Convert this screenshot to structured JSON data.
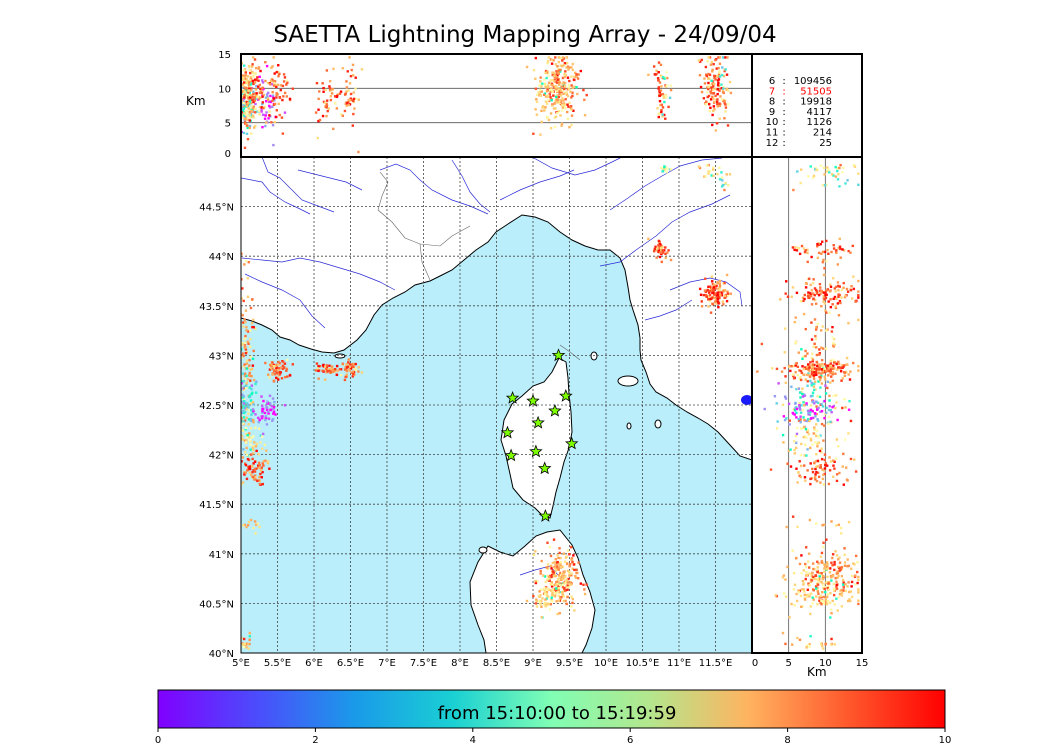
{
  "title": "SAETTA Lightning Mapping Array - 24/09/04",
  "map": {
    "lon_range": [
      5.0,
      12.0
    ],
    "lat_range": [
      40.0,
      45.0
    ],
    "lon_ticks": [
      "5°E",
      "5.5°E",
      "6°E",
      "6.5°E",
      "7°E",
      "7.5°E",
      "8°E",
      "8.5°E",
      "9°E",
      "9.5°E",
      "10°E",
      "10.5°E",
      "11°E",
      "11.5°E"
    ],
    "lat_ticks": [
      "40°N",
      "40.5°N",
      "41°N",
      "41.5°N",
      "42°N",
      "42.5°N",
      "43°N",
      "43.5°N",
      "44°N",
      "44.5°N"
    ],
    "sea_color": "#b9eefa",
    "land_color": "#ffffff",
    "river_color": "#2b2bd8",
    "grid": "dotted",
    "stations": [
      {
        "lon": 9.35,
        "lat": 43.0
      },
      {
        "lon": 8.72,
        "lat": 42.57
      },
      {
        "lon": 9.0,
        "lat": 42.54
      },
      {
        "lon": 9.45,
        "lat": 42.59
      },
      {
        "lon": 9.3,
        "lat": 42.44
      },
      {
        "lon": 9.07,
        "lat": 42.32
      },
      {
        "lon": 8.65,
        "lat": 42.22
      },
      {
        "lon": 9.53,
        "lat": 42.11
      },
      {
        "lon": 8.7,
        "lat": 41.99
      },
      {
        "lon": 9.04,
        "lat": 42.03
      },
      {
        "lon": 9.16,
        "lat": 41.86
      },
      {
        "lon": 9.17,
        "lat": 41.38
      }
    ],
    "station_color": "#7dff00"
  },
  "top_panel": {
    "y_label": "Km",
    "y_ticks": [
      "0",
      "5",
      "10",
      "15"
    ],
    "y_range": [
      0,
      15
    ]
  },
  "right_panel": {
    "x_label": "Km",
    "x_ticks": [
      "0",
      "5",
      "10",
      "15"
    ],
    "x_range": [
      0,
      15
    ]
  },
  "stats": [
    {
      "label": "6",
      "count": "109456",
      "color": "#000000"
    },
    {
      "label": "7",
      "count": "51505",
      "color": "#ff0000"
    },
    {
      "label": "8",
      "count": "19918",
      "color": "#000000"
    },
    {
      "label": "9",
      "count": "4117",
      "color": "#000000"
    },
    {
      "label": "10",
      "count": "1126",
      "color": "#000000"
    },
    {
      "label": "11",
      "count": "214",
      "color": "#000000"
    },
    {
      "label": "12",
      "count": "25",
      "color": "#000000"
    }
  ],
  "colorbar": {
    "caption": "from 15:10:00 to 15:19:59",
    "ticks": [
      "0",
      "2",
      "4",
      "6",
      "8",
      "10"
    ],
    "range": [
      0,
      10
    ],
    "colormap": "rainbow"
  },
  "clusters": [
    {
      "lon": 5.05,
      "lat": 42.9,
      "h": 9,
      "n": 160,
      "sx": 0.07,
      "sy": 0.45,
      "t": 7.5
    },
    {
      "lon": 5.05,
      "lat": 42.5,
      "h": 8,
      "n": 70,
      "sx": 0.1,
      "sy": 0.15,
      "t": 3.2
    },
    {
      "lon": 5.35,
      "lat": 42.45,
      "h": 8,
      "n": 50,
      "sx": 0.08,
      "sy": 0.06,
      "t": 0.6
    },
    {
      "lon": 5.1,
      "lat": 42.15,
      "h": 8,
      "n": 50,
      "sx": 0.13,
      "sy": 0.12,
      "t": 6.0
    },
    {
      "lon": 5.15,
      "lat": 41.85,
      "h": 9,
      "n": 70,
      "sx": 0.1,
      "sy": 0.08,
      "t": 8.6
    },
    {
      "lon": 5.15,
      "lat": 41.27,
      "h": 9,
      "n": 12,
      "sx": 0.06,
      "sy": 0.04,
      "t": 7.6
    },
    {
      "lon": 5.05,
      "lat": 40.1,
      "h": 9,
      "n": 20,
      "sx": 0.05,
      "sy": 0.05,
      "t": 7.0
    },
    {
      "lon": 5.5,
      "lat": 42.85,
      "h": 10,
      "n": 60,
      "sx": 0.08,
      "sy": 0.05,
      "t": 8.5
    },
    {
      "lon": 6.2,
      "lat": 42.85,
      "h": 9,
      "n": 45,
      "sx": 0.1,
      "sy": 0.03,
      "t": 8.7
    },
    {
      "lon": 6.5,
      "lat": 42.87,
      "h": 9,
      "n": 45,
      "sx": 0.06,
      "sy": 0.04,
      "t": 7.9
    },
    {
      "lon": 9.35,
      "lat": 40.75,
      "h": 10,
      "n": 240,
      "sx": 0.13,
      "sy": 0.15,
      "t": 7.5
    },
    {
      "lon": 9.15,
      "lat": 40.55,
      "h": 9,
      "n": 40,
      "sx": 0.06,
      "sy": 0.08,
      "t": 6.4
    },
    {
      "lon": 10.75,
      "lat": 44.07,
      "h": 10,
      "n": 45,
      "sx": 0.05,
      "sy": 0.05,
      "t": 8.8
    },
    {
      "lon": 10.82,
      "lat": 44.88,
      "h": 10,
      "n": 15,
      "sx": 0.04,
      "sy": 0.02,
      "t": 5.0
    },
    {
      "lon": 11.5,
      "lat": 43.62,
      "h": 10,
      "n": 110,
      "sx": 0.1,
      "sy": 0.07,
      "t": 8.9
    },
    {
      "lon": 11.45,
      "lat": 44.85,
      "h": 10,
      "n": 20,
      "sx": 0.1,
      "sy": 0.04,
      "t": 6.6
    },
    {
      "lon": 11.6,
      "lat": 44.73,
      "h": 10,
      "n": 10,
      "sx": 0.04,
      "sy": 0.03,
      "t": 4.0
    }
  ]
}
